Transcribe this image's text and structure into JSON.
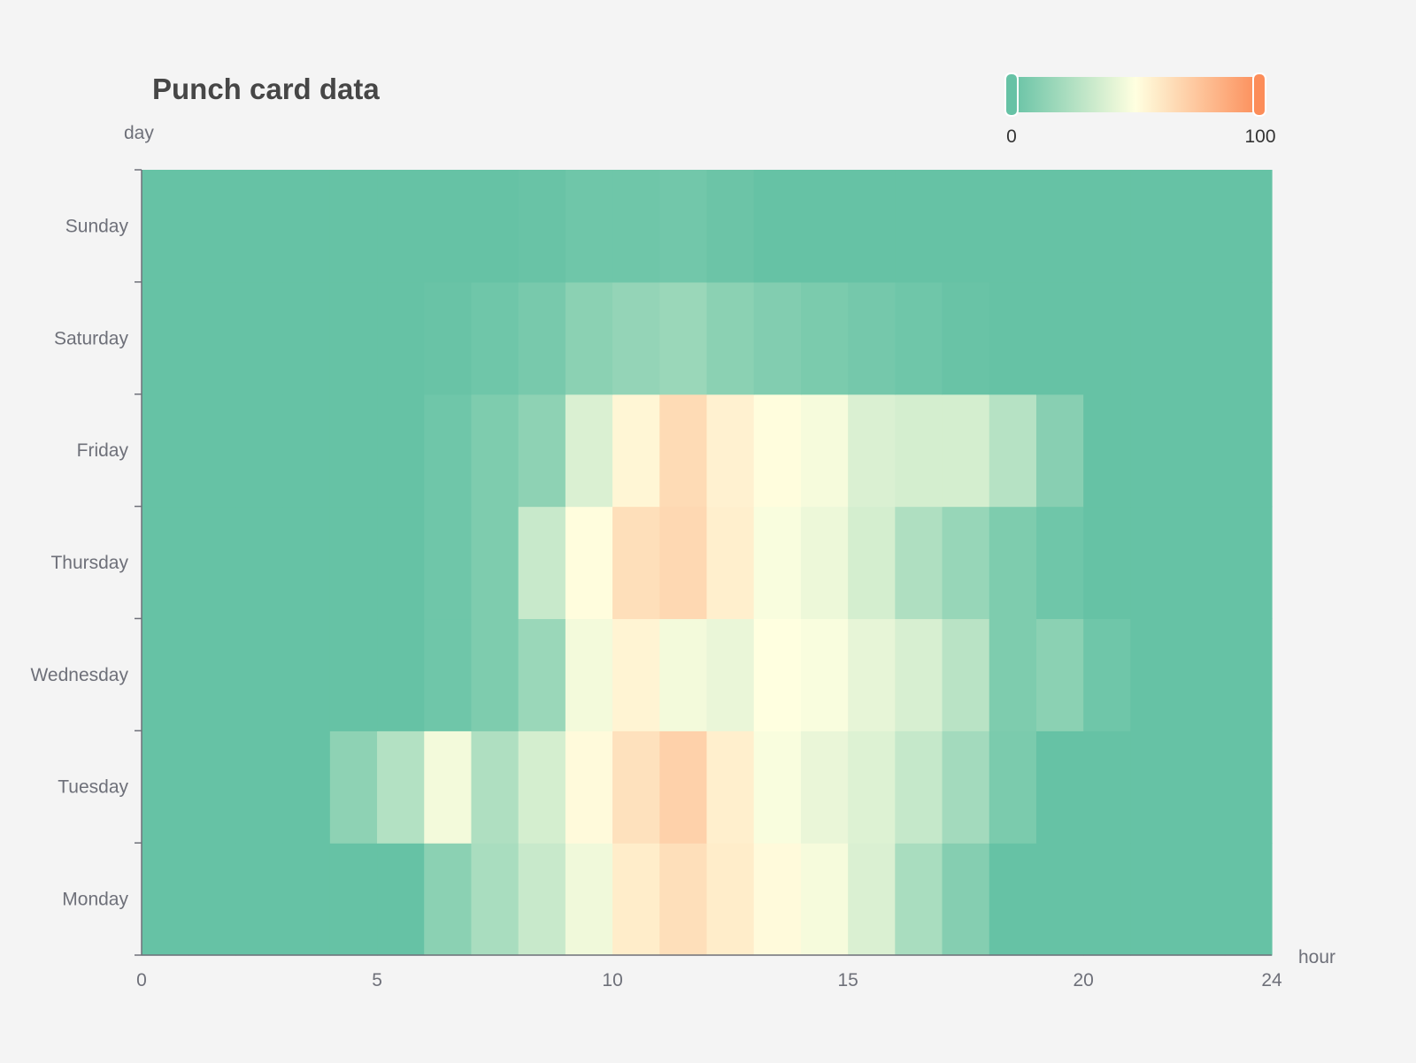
{
  "chart_data": {
    "type": "heatmap",
    "title": "Punch card data",
    "xlabel": "hour",
    "ylabel": "day",
    "x_range": [
      0,
      24
    ],
    "x_ticks": [
      "0",
      "5",
      "10",
      "15",
      "20",
      "24"
    ],
    "categories_y": [
      "Monday",
      "Tuesday",
      "Wednesday",
      "Thursday",
      "Friday",
      "Saturday",
      "Sunday"
    ],
    "value_range": [
      0,
      100
    ],
    "color_scale": [
      "#66c2a5",
      "#ffffe0",
      "#fc8d59"
    ],
    "values": [
      [
        0,
        0,
        0,
        0,
        0,
        0,
        12,
        22,
        32,
        45,
        58,
        64,
        58,
        52,
        47,
        38,
        22,
        10,
        0,
        0,
        0,
        0,
        0,
        0
      ],
      [
        0,
        0,
        0,
        0,
        13,
        25,
        46,
        24,
        36,
        52,
        63,
        70,
        57,
        48,
        43,
        39,
        31,
        20,
        7,
        0,
        0,
        0,
        0,
        0
      ],
      [
        0,
        0,
        0,
        0,
        0,
        0,
        3,
        8,
        17,
        46,
        55,
        46,
        43,
        50,
        48,
        42,
        37,
        27,
        8,
        12,
        3,
        0,
        0,
        0
      ],
      [
        0,
        0,
        0,
        0,
        0,
        0,
        3,
        8,
        32,
        51,
        64,
        67,
        57,
        48,
        44,
        36,
        24,
        16,
        8,
        3,
        0,
        0,
        0,
        0
      ],
      [
        0,
        0,
        0,
        0,
        0,
        0,
        3,
        8,
        13,
        38,
        54,
        66,
        56,
        51,
        47,
        38,
        36,
        36,
        26,
        11,
        0,
        0,
        0,
        0
      ],
      [
        0,
        0,
        0,
        0,
        0,
        0,
        1,
        3,
        6,
        12,
        15,
        17,
        12,
        9,
        7,
        5,
        3,
        1,
        0,
        0,
        0,
        0,
        0,
        0
      ],
      [
        0,
        0,
        0,
        0,
        0,
        0,
        0,
        0,
        1,
        3,
        3,
        4,
        2,
        0,
        0,
        0,
        0,
        0,
        0,
        0,
        0,
        0,
        0,
        0
      ]
    ],
    "visual_map": {
      "min_label": "0",
      "max_label": "100"
    }
  }
}
